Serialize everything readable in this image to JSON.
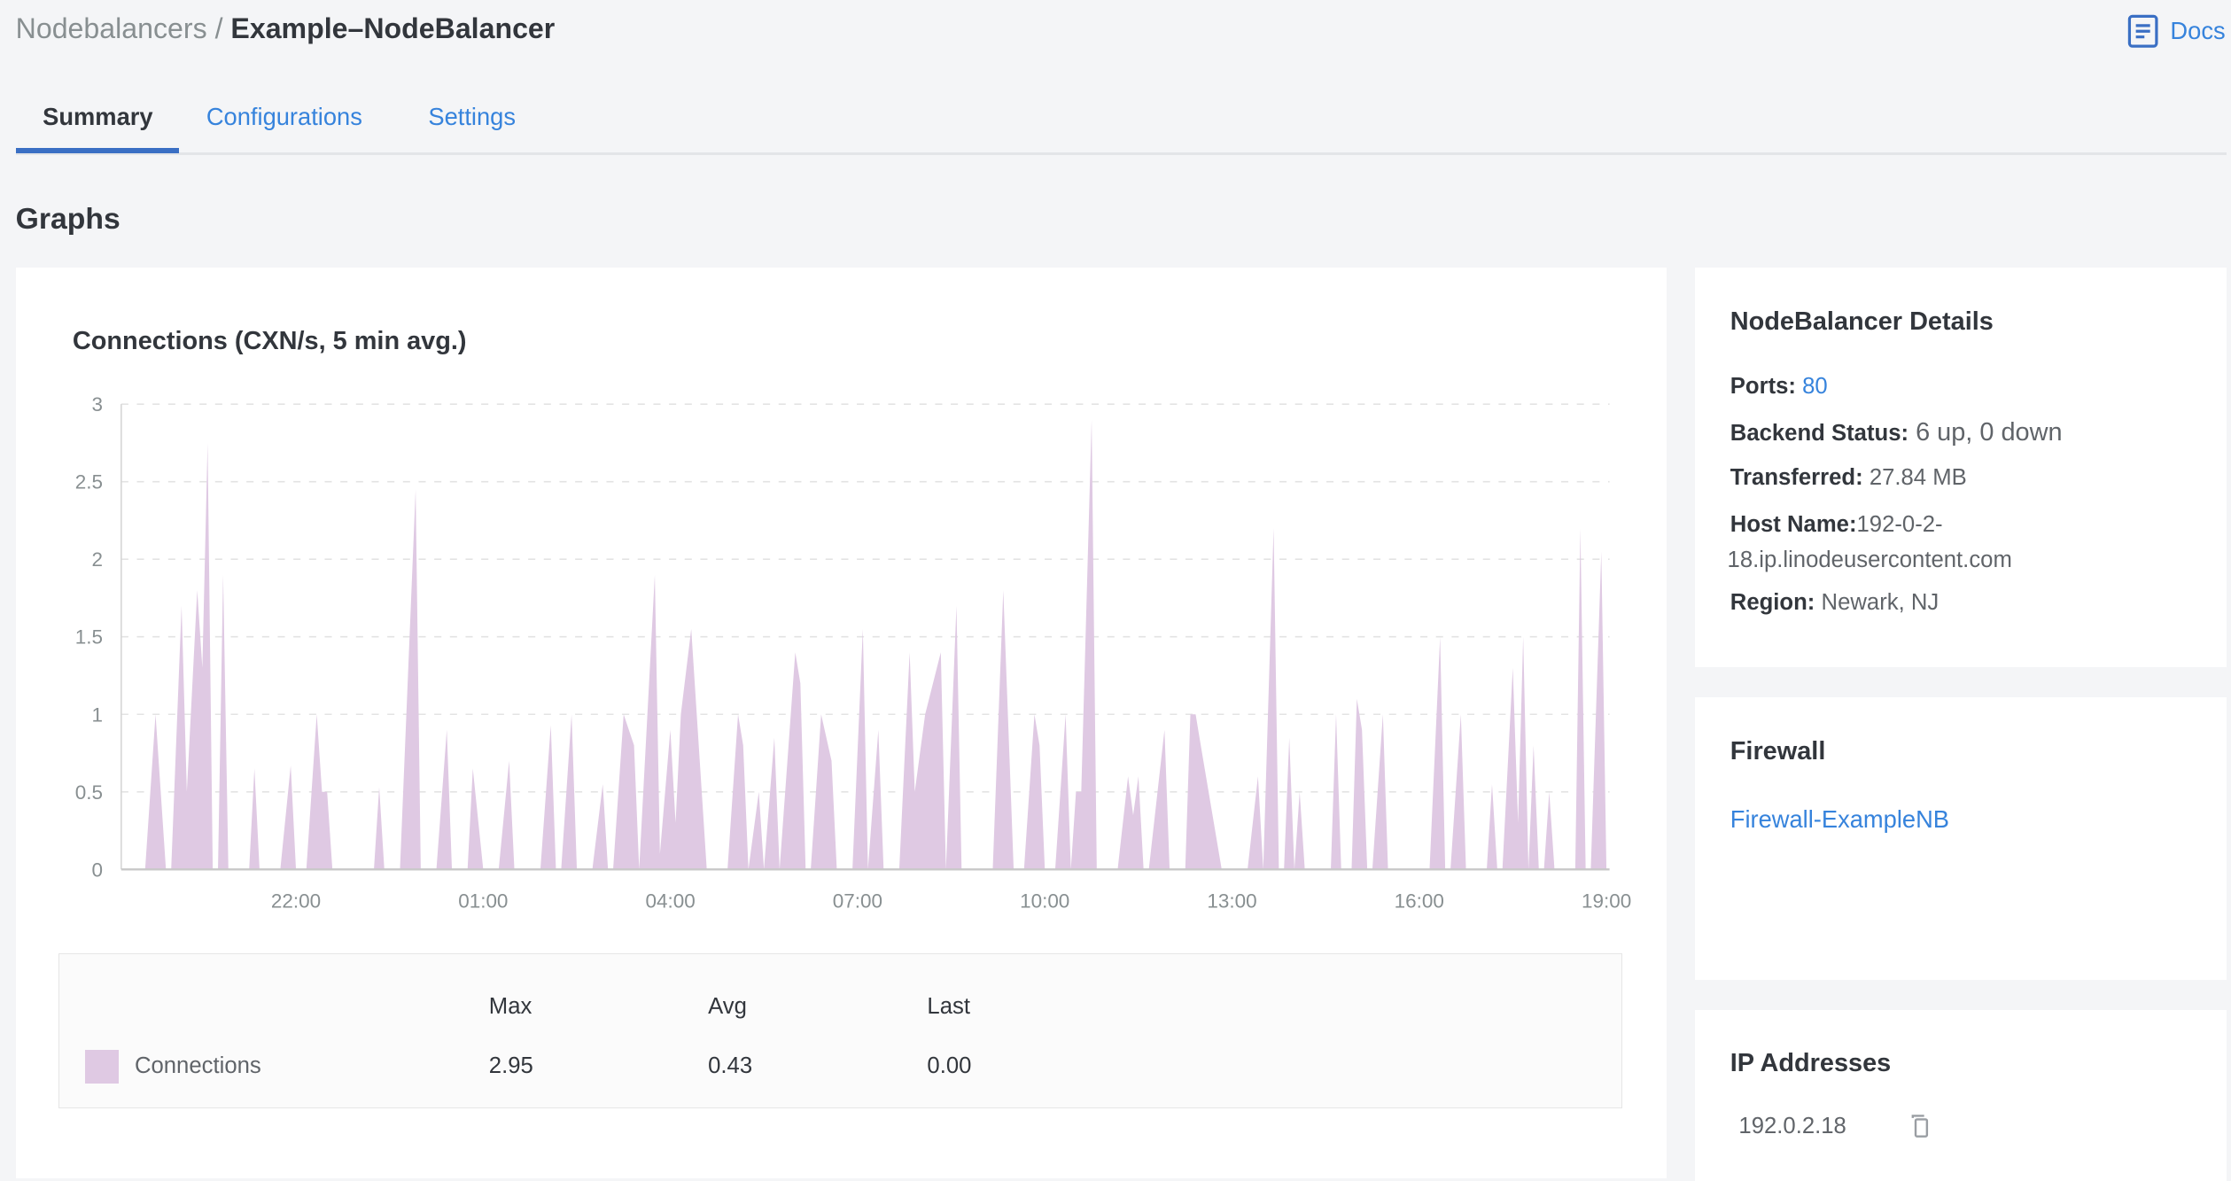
{
  "breadcrumb": {
    "parent": "Nodebalancers",
    "separator": " / ",
    "current": "Example–NodeBalancer"
  },
  "docs": {
    "label": "Docs",
    "icon": "docs-icon"
  },
  "tabs": [
    {
      "label": "Summary",
      "active": true
    },
    {
      "label": "Configurations"
    },
    {
      "label": "Settings"
    }
  ],
  "section_title": "Graphs",
  "colors": {
    "accent": "#3a6fc4",
    "link": "#3683dc",
    "series": "#dfc9e3"
  },
  "chart_data": {
    "type": "area",
    "title": "Connections (CXN/s, 5 min avg.)",
    "ylim": [
      0,
      3
    ],
    "yticks": [
      "0",
      "0.5",
      "1",
      "1.5",
      "2",
      "2.5",
      "3"
    ],
    "xlim": [
      "19:12",
      "19:03"
    ],
    "xticks": [
      "22:00",
      "01:00",
      "04:00",
      "07:00",
      "10:00",
      "13:00",
      "16:00",
      "19:00"
    ],
    "grid": "horizontal dashed",
    "series": [
      {
        "name": "Connections",
        "color": "#dfc9e3",
        "points": [
          [
            "19:35",
            0
          ],
          [
            "19:45",
            1.0
          ],
          [
            "19:55",
            0
          ],
          [
            "20:00",
            0
          ],
          [
            "20:10",
            1.7
          ],
          [
            "20:15",
            0.5
          ],
          [
            "20:25",
            1.8
          ],
          [
            "20:30",
            1.3
          ],
          [
            "20:35",
            2.75
          ],
          [
            "20:40",
            0
          ],
          [
            "20:45",
            0
          ],
          [
            "20:50",
            1.9
          ],
          [
            "20:55",
            0
          ],
          [
            "21:15",
            0
          ],
          [
            "21:20",
            0.65
          ],
          [
            "21:25",
            0
          ],
          [
            "21:45",
            0
          ],
          [
            "21:55",
            0.67
          ],
          [
            "22:00",
            0
          ],
          [
            "22:10",
            0
          ],
          [
            "22:20",
            1.0
          ],
          [
            "22:25",
            0.5
          ],
          [
            "22:30",
            0.5
          ],
          [
            "22:35",
            0
          ],
          [
            "23:15",
            0
          ],
          [
            "23:20",
            0.53
          ],
          [
            "23:25",
            0
          ],
          [
            "23:40",
            0
          ],
          [
            "23:55",
            2.45
          ],
          [
            "00:00",
            0
          ],
          [
            "00:15",
            0
          ],
          [
            "00:25",
            0.9
          ],
          [
            "00:30",
            0
          ],
          [
            "00:45",
            0
          ],
          [
            "00:50",
            0.65
          ],
          [
            "01:00",
            0
          ],
          [
            "01:15",
            0
          ],
          [
            "01:25",
            0.7
          ],
          [
            "01:30",
            0
          ],
          [
            "01:55",
            0
          ],
          [
            "02:05",
            0.93
          ],
          [
            "02:10",
            0
          ],
          [
            "02:15",
            0
          ],
          [
            "02:25",
            1.0
          ],
          [
            "02:30",
            0
          ],
          [
            "02:45",
            0
          ],
          [
            "02:55",
            0.55
          ],
          [
            "03:00",
            0
          ],
          [
            "03:05",
            0
          ],
          [
            "03:15",
            1.0
          ],
          [
            "03:25",
            0.8
          ],
          [
            "03:30",
            0
          ],
          [
            "03:45",
            1.9
          ],
          [
            "03:50",
            0.1
          ],
          [
            "04:00",
            0.9
          ],
          [
            "04:05",
            0.3
          ],
          [
            "04:10",
            1.0
          ],
          [
            "04:20",
            1.55
          ],
          [
            "04:35",
            0
          ],
          [
            "04:55",
            0
          ],
          [
            "05:05",
            1.0
          ],
          [
            "05:10",
            0.8
          ],
          [
            "05:15",
            0
          ],
          [
            "05:25",
            0.5
          ],
          [
            "05:30",
            0
          ],
          [
            "05:40",
            0.85
          ],
          [
            "05:45",
            0
          ],
          [
            "06:00",
            1.4
          ],
          [
            "06:05",
            1.2
          ],
          [
            "06:10",
            0
          ],
          [
            "06:15",
            0
          ],
          [
            "06:25",
            1.0
          ],
          [
            "06:35",
            0.7
          ],
          [
            "06:40",
            0
          ],
          [
            "06:55",
            0
          ],
          [
            "07:05",
            1.55
          ],
          [
            "07:10",
            0
          ],
          [
            "07:20",
            0.9
          ],
          [
            "07:25",
            0
          ],
          [
            "07:40",
            0
          ],
          [
            "07:50",
            1.4
          ],
          [
            "07:55",
            0.5
          ],
          [
            "08:05",
            1.0
          ],
          [
            "08:20",
            1.4
          ],
          [
            "08:25",
            0
          ],
          [
            "08:35",
            1.7
          ],
          [
            "08:40",
            0
          ],
          [
            "09:10",
            0
          ],
          [
            "09:20",
            1.8
          ],
          [
            "09:30",
            0
          ],
          [
            "09:40",
            0
          ],
          [
            "09:50",
            1.0
          ],
          [
            "09:55",
            0.8
          ],
          [
            "10:00",
            0
          ],
          [
            "10:10",
            0
          ],
          [
            "10:20",
            1.0
          ],
          [
            "10:25",
            0
          ],
          [
            "10:30",
            0.5
          ],
          [
            "10:35",
            0.5
          ],
          [
            "10:45",
            2.9
          ],
          [
            "10:50",
            0
          ],
          [
            "11:10",
            0
          ],
          [
            "11:20",
            0.6
          ],
          [
            "11:25",
            0.35
          ],
          [
            "11:30",
            0.6
          ],
          [
            "11:35",
            0
          ],
          [
            "11:40",
            0
          ],
          [
            "11:55",
            0.9
          ],
          [
            "12:00",
            0
          ],
          [
            "12:15",
            0
          ],
          [
            "12:20",
            1.0
          ],
          [
            "12:25",
            1.0
          ],
          [
            "12:30",
            0.8
          ],
          [
            "12:50",
            0
          ],
          [
            "13:15",
            0
          ],
          [
            "13:25",
            0.6
          ],
          [
            "13:30",
            0
          ],
          [
            "13:40",
            2.2
          ],
          [
            "13:45",
            0
          ],
          [
            "13:50",
            0
          ],
          [
            "13:55",
            0.85
          ],
          [
            "14:00",
            0
          ],
          [
            "14:05",
            0.5
          ],
          [
            "14:10",
            0
          ],
          [
            "14:35",
            0
          ],
          [
            "14:40",
            1.0
          ],
          [
            "14:45",
            0
          ],
          [
            "14:55",
            0
          ],
          [
            "15:00",
            1.1
          ],
          [
            "15:05",
            0.9
          ],
          [
            "15:10",
            0
          ],
          [
            "15:15",
            0
          ],
          [
            "15:25",
            1.0
          ],
          [
            "15:30",
            0
          ],
          [
            "16:10",
            0
          ],
          [
            "16:20",
            1.5
          ],
          [
            "16:25",
            0
          ],
          [
            "16:30",
            0
          ],
          [
            "16:40",
            1.0
          ],
          [
            "16:45",
            0
          ],
          [
            "17:05",
            0
          ],
          [
            "17:10",
            0.55
          ],
          [
            "17:15",
            0
          ],
          [
            "17:20",
            0
          ],
          [
            "17:30",
            1.3
          ],
          [
            "17:35",
            0.3
          ],
          [
            "17:40",
            1.5
          ],
          [
            "17:45",
            0
          ],
          [
            "17:50",
            0.8
          ],
          [
            "17:55",
            0
          ],
          [
            "18:00",
            0
          ],
          [
            "18:05",
            0.5
          ],
          [
            "18:10",
            0
          ],
          [
            "18:30",
            0
          ],
          [
            "18:35",
            2.2
          ],
          [
            "18:40",
            0
          ],
          [
            "18:45",
            0
          ],
          [
            "18:55",
            2.05
          ],
          [
            "19:00",
            0
          ]
        ]
      }
    ]
  },
  "legend": {
    "headers": [
      "Max",
      "Avg",
      "Last"
    ],
    "rows": [
      {
        "name": "Connections",
        "max": "2.95",
        "avg": "0.43",
        "last": "0.00"
      }
    ]
  },
  "details": {
    "title": "NodeBalancer Details",
    "ports_label": "Ports:",
    "ports": "80",
    "backend_label": "Backend Status:",
    "backend": "6 up, 0 down",
    "transferred_label": "Transferred:",
    "transferred": "27.84 MB",
    "host_label": "Host Name:",
    "host_line1": "192-0-2-",
    "host_line2": "18.ip.linodeusercontent.com",
    "region_label": "Region:",
    "region": "Newark, NJ"
  },
  "firewall": {
    "title": "Firewall",
    "name": "Firewall-ExampleNB"
  },
  "ips": {
    "title": "IP Addresses",
    "items": [
      "192.0.2.18"
    ],
    "copy_icon": "copy-icon"
  }
}
